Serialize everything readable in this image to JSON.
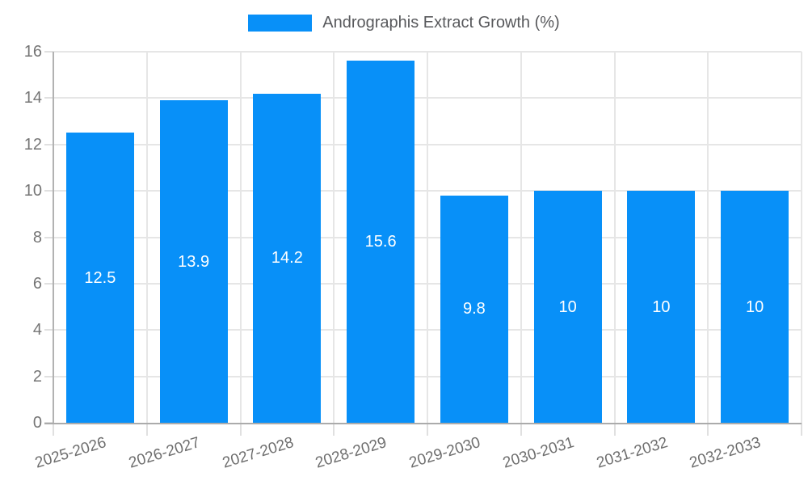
{
  "chart_data": {
    "type": "bar",
    "title": "Andrographis Extract Growth (%)",
    "categories": [
      "2025-2026",
      "2026-2027",
      "2027-2028",
      "2028-2029",
      "2029-2030",
      "2030-2031",
      "2031-2032",
      "2032-2033"
    ],
    "values": [
      12.5,
      13.9,
      14.2,
      15.6,
      9.8,
      10,
      10,
      10
    ],
    "value_labels": [
      "12.5",
      "13.9",
      "14.2",
      "15.6",
      "9.8",
      "10",
      "10",
      "10"
    ],
    "xlabel": "",
    "ylabel": "",
    "ylim": [
      0,
      16
    ],
    "yticks": [
      0,
      2,
      4,
      6,
      8,
      10,
      12,
      14,
      16
    ],
    "grid": true,
    "legend_position": "top",
    "bar_color": "#0890f8",
    "value_label_color": "#ffffff",
    "grid_color": "#e6e6e6",
    "axis_color": "#ababab",
    "tick_label_color": "#757575",
    "background_color": "#ffffff"
  }
}
